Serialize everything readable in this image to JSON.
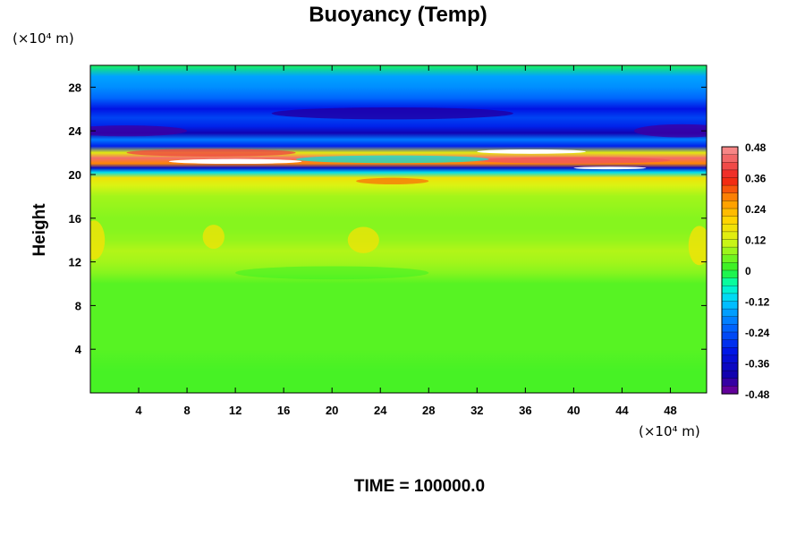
{
  "chart_data": {
    "type": "heatmap",
    "title": "Buoyancy (Temp)",
    "ylabel": "Height",
    "xlabel": "",
    "y_unit": "(×10⁴ m)",
    "x_unit": "(×10⁴ m)",
    "footer": "TIME = 100000.0",
    "xlim": [
      0,
      51
    ],
    "ylim": [
      0,
      30
    ],
    "x_ticks": [
      4,
      8,
      12,
      16,
      20,
      24,
      28,
      32,
      36,
      40,
      44,
      48
    ],
    "y_ticks": [
      4,
      8,
      12,
      16,
      20,
      24,
      28
    ],
    "colorbar": {
      "min": -0.48,
      "max": 0.48,
      "ticks": [
        "0.48",
        "0.36",
        "0.24",
        "0.12",
        "0",
        "-0.12",
        "-0.24",
        "-0.36",
        "-0.48"
      ],
      "tick_values": [
        0.48,
        0.36,
        0.24,
        0.12,
        0,
        -0.12,
        -0.24,
        -0.36,
        -0.48
      ]
    },
    "profile": {
      "height": [
        0,
        2,
        4,
        6,
        8,
        10,
        11,
        12,
        13,
        14,
        15,
        16,
        18,
        19,
        19.7,
        20.2,
        20.6,
        21.0,
        21.5,
        22.0,
        22.6,
        23.2,
        23.8,
        24.4,
        25.2,
        26.0,
        27.0,
        28.0,
        29.0,
        30.0
      ],
      "buoyancy": [
        0.02,
        0.02,
        0.03,
        0.03,
        0.03,
        0.03,
        0.06,
        0.08,
        0.09,
        0.07,
        0.06,
        0.06,
        0.08,
        0.12,
        0.16,
        -0.1,
        -0.36,
        0.28,
        0.44,
        0.14,
        -0.3,
        -0.2,
        -0.4,
        -0.3,
        -0.26,
        -0.32,
        -0.22,
        -0.18,
        -0.16,
        -0.02
      ]
    }
  }
}
